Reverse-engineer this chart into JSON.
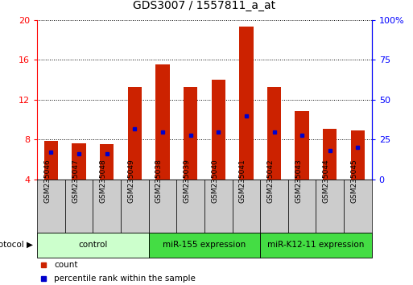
{
  "title": "GDS3007 / 1557811_a_at",
  "samples": [
    "GSM235046",
    "GSM235047",
    "GSM235048",
    "GSM235049",
    "GSM235038",
    "GSM235039",
    "GSM235040",
    "GSM235041",
    "GSM235042",
    "GSM235043",
    "GSM235044",
    "GSM235045"
  ],
  "count_values": [
    7.9,
    7.6,
    7.55,
    13.3,
    15.55,
    13.3,
    14.0,
    19.3,
    13.3,
    10.9,
    9.1,
    8.9
  ],
  "percentile_values": [
    17,
    16,
    16,
    32,
    30,
    28,
    30,
    40,
    30,
    28,
    18,
    20
  ],
  "bar_bottom": 4.0,
  "ylim_left": [
    4,
    20
  ],
  "ylim_right": [
    0,
    100
  ],
  "yticks_left": [
    4,
    8,
    12,
    16,
    20
  ],
  "yticks_right": [
    0,
    25,
    50,
    75,
    100
  ],
  "left_tick_labels": [
    "4",
    "8",
    "12",
    "16",
    "20"
  ],
  "right_tick_labels": [
    "0",
    "25",
    "50",
    "75",
    "100%"
  ],
  "bar_color": "#CC2200",
  "percentile_color": "#0000CC",
  "group_colors": [
    "#ccffcc",
    "#44dd44",
    "#44dd44"
  ],
  "group_starts": [
    0,
    4,
    8
  ],
  "group_ends": [
    4,
    8,
    12
  ],
  "group_labels": [
    "control",
    "miR-155 expression",
    "miR-K12-11 expression"
  ],
  "protocol_label": "protocol",
  "legend_count_label": "count",
  "legend_percentile_label": "percentile rank within the sample",
  "tick_box_color": "#cccccc",
  "bar_width": 0.5
}
